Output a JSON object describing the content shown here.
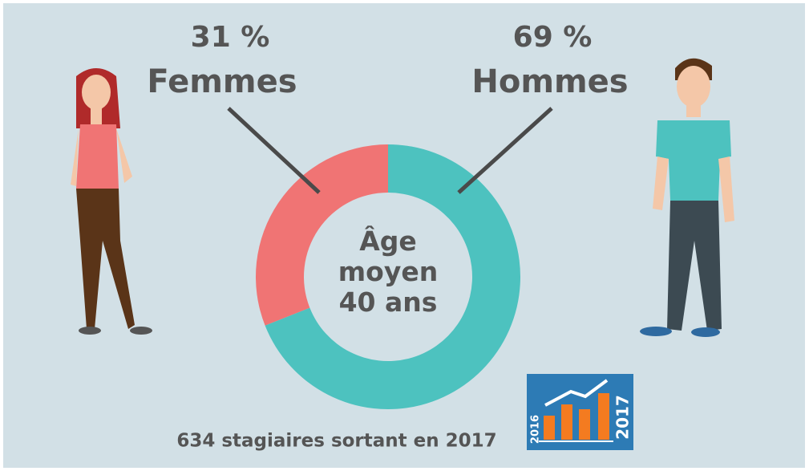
{
  "chart_data": {
    "type": "donut",
    "categories": [
      "Femmes",
      "Hommes"
    ],
    "values": [
      31,
      69
    ],
    "value_labels": [
      "31 %",
      "69 %"
    ],
    "colors": [
      "#f07474",
      "#4dc2bf"
    ],
    "center_text": "Âge moyen 40 ans",
    "footer": "634 stagiaires sortant en 2017",
    "icon_labels": [
      "2016",
      "2017"
    ]
  }
}
